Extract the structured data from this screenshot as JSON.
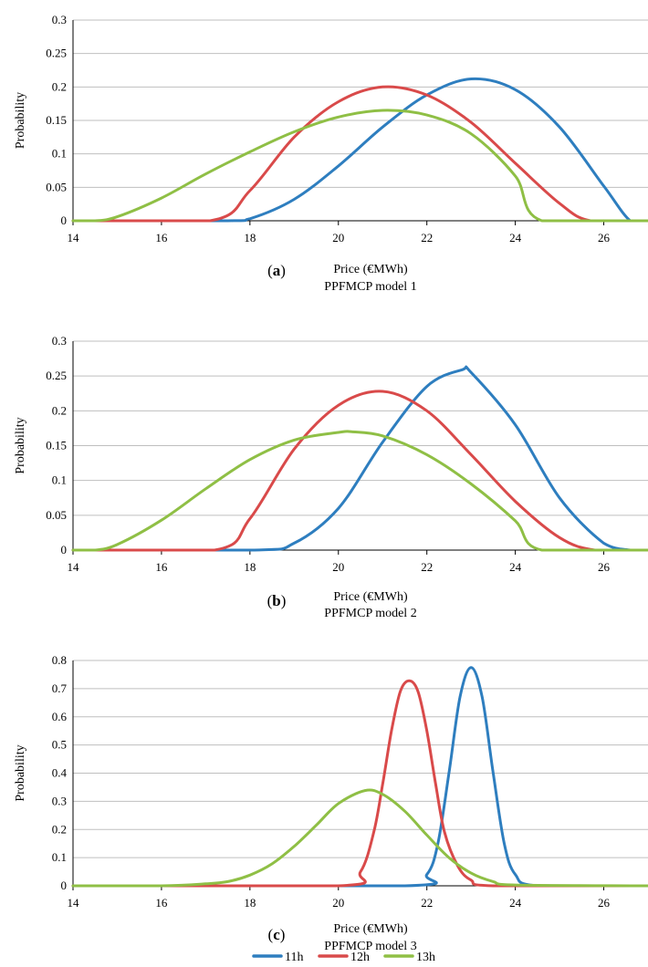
{
  "chart_data": [
    {
      "type": "line",
      "panel_label": "a",
      "xlabel": "Price (€MWh)",
      "subtitle": "PPFMCP model 1",
      "ylabel": "Probability",
      "xlim": [
        14,
        27
      ],
      "ylim": [
        0,
        0.3
      ],
      "xticks": [
        "14",
        "16",
        "18",
        "20",
        "22",
        "24",
        "26"
      ],
      "yticks": [
        "0",
        "0.05",
        "0.1",
        "0.15",
        "0.2",
        "0.25",
        "0.3"
      ],
      "grid": true,
      "series": [
        {
          "name": "11h",
          "x": [
            14,
            17.5,
            18,
            19,
            20,
            21,
            22,
            23,
            24,
            25,
            26,
            26.6,
            27
          ],
          "y": [
            0,
            0,
            0.003,
            0.032,
            0.082,
            0.14,
            0.188,
            0.212,
            0.196,
            0.14,
            0.052,
            0,
            0
          ]
        },
        {
          "name": "12h",
          "x": [
            14,
            17.1,
            18,
            19,
            20,
            21,
            22,
            23,
            24,
            25,
            25.7,
            27
          ],
          "y": [
            0,
            0,
            0.045,
            0.125,
            0.178,
            0.2,
            0.188,
            0.147,
            0.086,
            0.026,
            0,
            0
          ]
        },
        {
          "name": "13h",
          "x": [
            14,
            14.5,
            15,
            16,
            17,
            18,
            19,
            20,
            21,
            22,
            23,
            24,
            24.6,
            27
          ],
          "y": [
            0,
            0,
            0.006,
            0.034,
            0.07,
            0.103,
            0.133,
            0.155,
            0.165,
            0.158,
            0.13,
            0.067,
            0,
            0
          ]
        }
      ]
    },
    {
      "type": "line",
      "panel_label": "b",
      "xlabel": "Price (€MWh)",
      "subtitle": "PPFMCP model 2",
      "ylabel": "Probability",
      "xlim": [
        14,
        27
      ],
      "ylim": [
        0,
        0.3
      ],
      "xticks": [
        "14",
        "16",
        "18",
        "20",
        "22",
        "24",
        "26"
      ],
      "yticks": [
        "0",
        "0.05",
        "0.1",
        "0.15",
        "0.2",
        "0.25",
        "0.3"
      ],
      "grid": true,
      "series": [
        {
          "name": "11h",
          "x": [
            14,
            18.1,
            19,
            20,
            21,
            22,
            22.8,
            23,
            24,
            25,
            26,
            26.6,
            27
          ],
          "y": [
            0,
            0,
            0.01,
            0.06,
            0.155,
            0.235,
            0.259,
            0.255,
            0.18,
            0.075,
            0.01,
            0,
            0
          ]
        },
        {
          "name": "12h",
          "x": [
            14,
            17.2,
            18,
            19,
            20,
            21,
            22,
            23,
            24,
            25,
            25.8,
            27
          ],
          "y": [
            0,
            0,
            0.045,
            0.145,
            0.208,
            0.228,
            0.2,
            0.137,
            0.07,
            0.018,
            0,
            0
          ]
        },
        {
          "name": "13h",
          "x": [
            14,
            14.5,
            15,
            16,
            17,
            18,
            19,
            20,
            20.3,
            21,
            22,
            23,
            24,
            24.6,
            27
          ],
          "y": [
            0,
            0,
            0.008,
            0.043,
            0.088,
            0.13,
            0.158,
            0.169,
            0.17,
            0.164,
            0.137,
            0.095,
            0.042,
            0,
            0
          ]
        }
      ]
    },
    {
      "type": "line",
      "panel_label": "c",
      "xlabel": "Price (€MWh)",
      "subtitle": "PPFMCP model 3",
      "ylabel": "Probability",
      "xlim": [
        14,
        27
      ],
      "ylim": [
        0,
        0.8
      ],
      "xticks": [
        "14",
        "16",
        "18",
        "20",
        "22",
        "24",
        "26"
      ],
      "yticks": [
        "0",
        "0.1",
        "0.2",
        "0.3",
        "0.4",
        "0.5",
        "0.6",
        "0.7",
        "0.8"
      ],
      "grid": true,
      "series": [
        {
          "name": "11h",
          "x": [
            14,
            21.5,
            22,
            22.25,
            22.5,
            22.75,
            23,
            23.25,
            23.5,
            23.75,
            24,
            24.5,
            27
          ],
          "y": [
            0,
            0,
            0.04,
            0.15,
            0.4,
            0.67,
            0.775,
            0.67,
            0.4,
            0.15,
            0.04,
            0,
            0
          ]
        },
        {
          "name": "12h",
          "x": [
            14,
            20,
            20.5,
            20.8,
            21,
            21.2,
            21.4,
            21.6,
            21.8,
            22,
            22.2,
            22.4,
            22.7,
            23,
            23.5,
            27
          ],
          "y": [
            0,
            0,
            0.05,
            0.19,
            0.36,
            0.55,
            0.69,
            0.728,
            0.69,
            0.55,
            0.36,
            0.19,
            0.07,
            0.02,
            0,
            0
          ]
        },
        {
          "name": "13h",
          "x": [
            14,
            16,
            17,
            17.5,
            18,
            18.5,
            19,
            19.5,
            20,
            20.6,
            21,
            21.5,
            22,
            22.5,
            23,
            23.5,
            24,
            27
          ],
          "y": [
            0,
            0,
            0.007,
            0.015,
            0.038,
            0.078,
            0.14,
            0.215,
            0.292,
            0.338,
            0.325,
            0.265,
            0.18,
            0.1,
            0.045,
            0.015,
            0.003,
            0
          ]
        }
      ]
    }
  ],
  "legend": [
    {
      "name": "11h",
      "color": "#2e7ebf"
    },
    {
      "name": "12h",
      "color": "#d94a4a"
    },
    {
      "name": "13h",
      "color": "#8fbf45"
    }
  ],
  "colors": {
    "11h": "#2e7ebf",
    "12h": "#d94a4a",
    "13h": "#8fbf45"
  }
}
